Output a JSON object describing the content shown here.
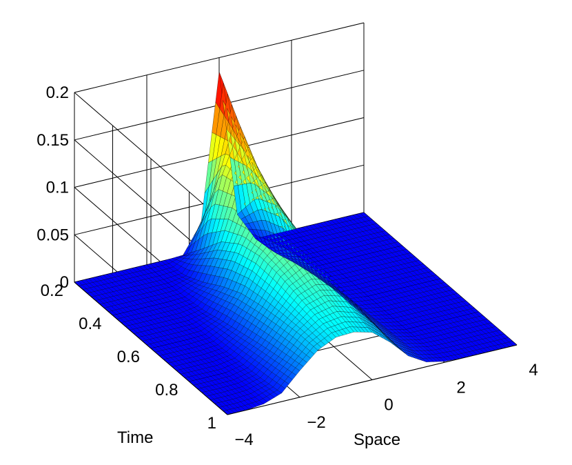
{
  "chart_data": {
    "type": "surface",
    "title": "",
    "xlabel": "Space",
    "ylabel": "Time",
    "zlabel": "",
    "xlim": [
      -4,
      4
    ],
    "ylim": [
      0.2,
      1
    ],
    "zlim": [
      0,
      0.2
    ],
    "grid": true,
    "colormap": "jet",
    "x_ticks": [
      "−4",
      "−2",
      "0",
      "2",
      "4"
    ],
    "y_ticks": [
      "0.2",
      "0.4",
      "0.6",
      "0.8",
      "1"
    ],
    "z_ticks": [
      "0",
      "0.05",
      "0.1",
      "0.15",
      "0.2"
    ],
    "surface": {
      "description_of_values": "z(x,t) evaluated at the listed x (Space) and t (Time) samples",
      "x": [
        -4.0,
        -3.5,
        -3.0,
        -2.5,
        -2.0,
        -1.5,
        -1.0,
        -0.5,
        0.0,
        0.5,
        1.0,
        1.5,
        2.0,
        2.5,
        3.0,
        3.5,
        4.0
      ],
      "t": [
        0.2,
        0.3,
        0.4,
        0.5,
        0.6,
        0.7,
        0.8,
        0.9,
        1.0
      ],
      "z": [
        [
          0.0,
          0.0,
          0.0,
          0.0,
          0.0,
          0.0,
          0.001,
          0.03,
          0.185,
          0.03,
          0.0,
          0.0,
          0.0,
          0.0,
          0.0,
          0.0,
          0.0
        ],
        [
          0.0,
          0.0,
          0.0,
          0.0,
          0.0,
          0.002,
          0.025,
          0.1,
          0.15,
          0.065,
          0.003,
          0.0,
          0.0,
          0.0,
          0.0,
          0.0,
          0.0
        ],
        [
          0.0,
          0.0,
          0.0,
          0.0,
          0.001,
          0.012,
          0.05,
          0.105,
          0.12,
          0.075,
          0.01,
          0.0,
          0.0,
          0.0,
          0.0,
          0.0,
          0.0
        ],
        [
          0.0,
          0.0,
          0.0,
          0.0,
          0.004,
          0.025,
          0.065,
          0.1,
          0.1,
          0.07,
          0.015,
          0.001,
          0.0,
          0.0,
          0.0,
          0.0,
          0.0
        ],
        [
          0.0,
          0.0,
          0.0,
          0.001,
          0.01,
          0.035,
          0.07,
          0.09,
          0.085,
          0.06,
          0.018,
          0.002,
          0.0,
          0.0,
          0.0,
          0.0,
          0.0
        ],
        [
          0.0,
          0.0,
          0.0,
          0.002,
          0.015,
          0.04,
          0.068,
          0.08,
          0.075,
          0.05,
          0.018,
          0.003,
          0.0,
          0.0,
          0.0,
          0.0,
          0.0
        ],
        [
          0.0,
          0.0,
          0.0,
          0.004,
          0.02,
          0.043,
          0.063,
          0.07,
          0.065,
          0.045,
          0.018,
          0.004,
          0.0,
          0.0,
          0.0,
          0.0,
          0.0
        ],
        [
          0.0,
          0.0,
          0.001,
          0.006,
          0.024,
          0.045,
          0.058,
          0.062,
          0.056,
          0.04,
          0.017,
          0.005,
          0.001,
          0.0,
          0.0,
          0.0,
          0.0
        ],
        [
          0.0,
          0.0,
          0.002,
          0.009,
          0.028,
          0.045,
          0.054,
          0.055,
          0.05,
          0.035,
          0.016,
          0.005,
          0.001,
          0.0,
          0.0,
          0.0,
          0.0
        ]
      ]
    }
  }
}
